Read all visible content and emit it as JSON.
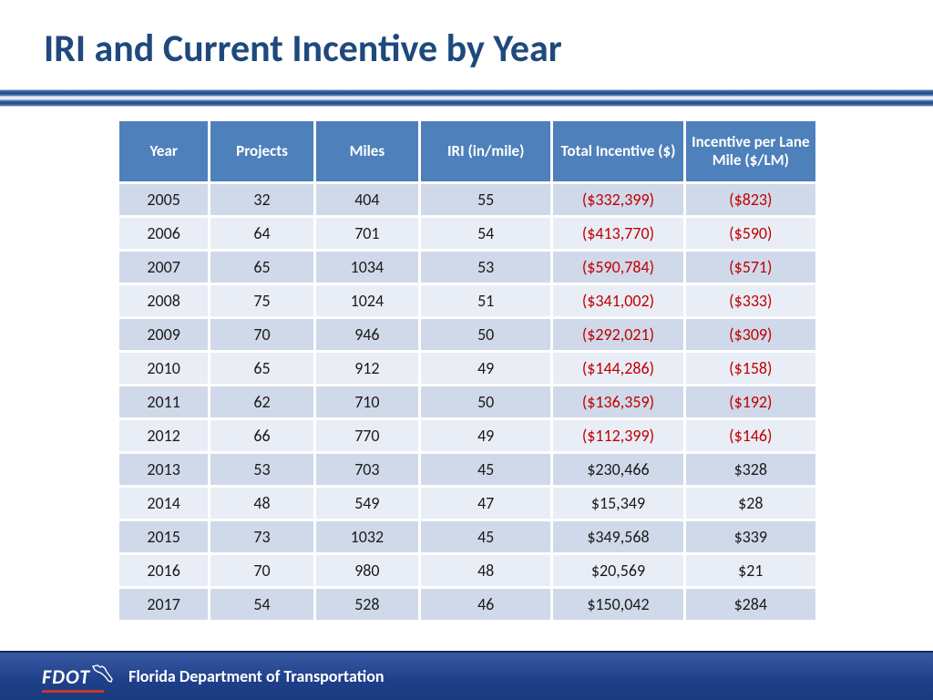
{
  "title": "IRI and Current Incentive by Year",
  "footer": {
    "logo_text": "FDOT",
    "dept": "Florida Department of Transportation"
  },
  "table": {
    "type": "table",
    "header_bg": "#4e80bb",
    "header_fg": "#ffffff",
    "row_odd_bg": "#d0d9e9",
    "row_even_bg": "#e9edf5",
    "negative_fg": "#c00000",
    "positive_fg": "#1a1a1a",
    "font_size": 18,
    "header_font_size": 17,
    "columns": [
      "Year",
      "Projects",
      "Miles",
      "IRI (in/mile)",
      "Total Incentive ($)",
      "Incentive per Lane Mile ($/LM)"
    ],
    "col_widths_pct": [
      13,
      15,
      15,
      19,
      19,
      19
    ],
    "rows": [
      {
        "year": "2005",
        "projects": "32",
        "miles": "404",
        "iri": "55",
        "total": "($332,399)",
        "perlm": "($823)",
        "neg": true
      },
      {
        "year": "2006",
        "projects": "64",
        "miles": "701",
        "iri": "54",
        "total": "($413,770)",
        "perlm": "($590)",
        "neg": true
      },
      {
        "year": "2007",
        "projects": "65",
        "miles": "1034",
        "iri": "53",
        "total": "($590,784)",
        "perlm": "($571)",
        "neg": true
      },
      {
        "year": "2008",
        "projects": "75",
        "miles": "1024",
        "iri": "51",
        "total": "($341,002)",
        "perlm": "($333)",
        "neg": true
      },
      {
        "year": "2009",
        "projects": "70",
        "miles": "946",
        "iri": "50",
        "total": "($292,021)",
        "perlm": "($309)",
        "neg": true
      },
      {
        "year": "2010",
        "projects": "65",
        "miles": "912",
        "iri": "49",
        "total": "($144,286)",
        "perlm": "($158)",
        "neg": true
      },
      {
        "year": "2011",
        "projects": "62",
        "miles": "710",
        "iri": "50",
        "total": "($136,359)",
        "perlm": "($192)",
        "neg": true
      },
      {
        "year": "2012",
        "projects": "66",
        "miles": "770",
        "iri": "49",
        "total": "($112,399)",
        "perlm": "($146)",
        "neg": true
      },
      {
        "year": "2013",
        "projects": "53",
        "miles": "703",
        "iri": "45",
        "total": "$230,466",
        "perlm": "$328",
        "neg": false
      },
      {
        "year": "2014",
        "projects": "48",
        "miles": "549",
        "iri": "47",
        "total": "$15,349",
        "perlm": "$28",
        "neg": false
      },
      {
        "year": "2015",
        "projects": "73",
        "miles": "1032",
        "iri": "45",
        "total": "$349,568",
        "perlm": "$339",
        "neg": false
      },
      {
        "year": "2016",
        "projects": "70",
        "miles": "980",
        "iri": "48",
        "total": "$20,569",
        "perlm": "$21",
        "neg": false
      },
      {
        "year": "2017",
        "projects": "54",
        "miles": "528",
        "iri": "46",
        "total": "$150,042",
        "perlm": "$284",
        "neg": false
      }
    ]
  },
  "colors": {
    "title": "#1f497d",
    "footer_bg_top": "#3959a3",
    "footer_bg_bot": "#1a397f",
    "rule_dark": "#1f497d",
    "rule_light": "#5478b4",
    "background": "#ffffff"
  }
}
